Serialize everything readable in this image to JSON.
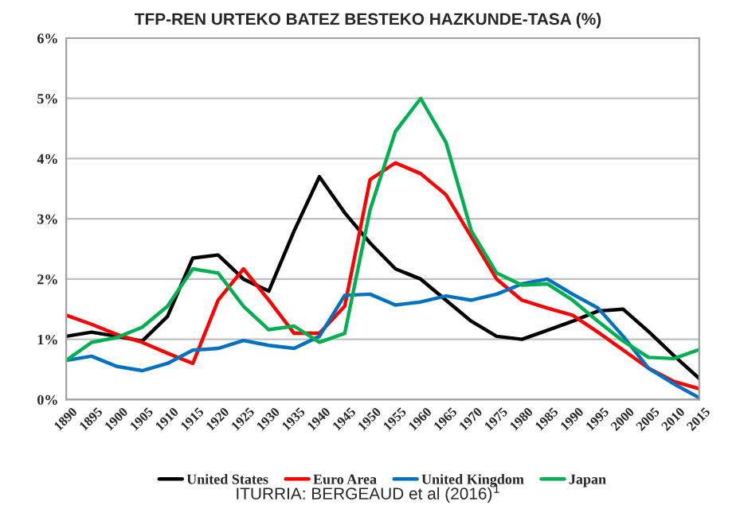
{
  "chart_data": {
    "type": "line",
    "title": "TFP-REN URTEKO BATEZ BESTEKO HAZKUNDE-TASA (%)",
    "annotations": [
      "ITURRIA: BERGEAUD et al (2016)$^{1}$"
    ],
    "x": [
      1890,
      1895,
      1900,
      1905,
      1910,
      1915,
      1920,
      1925,
      1930,
      1935,
      1940,
      1945,
      1950,
      1955,
      1960,
      1965,
      1970,
      1975,
      1980,
      1985,
      1990,
      1995,
      2000,
      2005,
      2010,
      2015
    ],
    "series": [
      {
        "name": "United States",
        "color": "#000000",
        "values": [
          1.05,
          1.12,
          1.05,
          0.97,
          1.38,
          2.35,
          2.4,
          2.0,
          1.8,
          2.8,
          3.7,
          3.1,
          2.6,
          2.17,
          2.0,
          1.65,
          1.3,
          1.05,
          1.0,
          1.15,
          1.3,
          1.47,
          1.5,
          1.13,
          0.73,
          0.35
        ]
      },
      {
        "name": "Euro Area",
        "color": "#ff0000",
        "values": [
          1.4,
          1.25,
          1.08,
          0.95,
          0.77,
          0.6,
          1.65,
          2.17,
          1.65,
          1.1,
          1.1,
          1.55,
          3.65,
          3.93,
          3.75,
          3.4,
          2.7,
          2.0,
          1.65,
          1.52,
          1.4,
          1.12,
          0.82,
          0.52,
          0.3,
          0.18
        ]
      },
      {
        "name": "United Kingdom",
        "color": "#0070c0",
        "values": [
          0.65,
          0.72,
          0.55,
          0.48,
          0.6,
          0.82,
          0.85,
          0.98,
          0.9,
          0.85,
          1.05,
          1.73,
          1.75,
          1.57,
          1.62,
          1.72,
          1.65,
          1.75,
          1.92,
          2.0,
          1.75,
          1.52,
          1.05,
          0.52,
          0.26,
          0.03
        ]
      },
      {
        "name": "Japan",
        "color": "#00b050",
        "values": [
          0.65,
          0.95,
          1.03,
          1.2,
          1.55,
          2.17,
          2.1,
          1.55,
          1.16,
          1.22,
          0.95,
          1.1,
          3.15,
          4.45,
          5.0,
          4.27,
          2.8,
          2.1,
          1.9,
          1.92,
          1.65,
          1.3,
          0.97,
          0.7,
          0.68,
          0.83
        ]
      }
    ],
    "xlim": [
      1890,
      2015
    ],
    "xticks": [
      1890,
      1895,
      1900,
      1905,
      1910,
      1915,
      1920,
      1925,
      1930,
      1935,
      1940,
      1945,
      1950,
      1955,
      1960,
      1965,
      1970,
      1975,
      1980,
      1985,
      1990,
      1995,
      2000,
      2005,
      2010,
      2015
    ],
    "ylim": [
      0,
      6
    ],
    "yticks": [
      {
        "value": 0,
        "label": "0%"
      },
      {
        "value": 1,
        "label": "1%"
      },
      {
        "value": 2,
        "label": "2%"
      },
      {
        "value": 3,
        "label": "3%"
      },
      {
        "value": 4,
        "label": "4%"
      },
      {
        "value": 5,
        "label": "5%"
      },
      {
        "value": 6,
        "label": "6%"
      }
    ],
    "grid": "y",
    "legend": "bottom",
    "marker": "none",
    "line_style": "solid"
  }
}
